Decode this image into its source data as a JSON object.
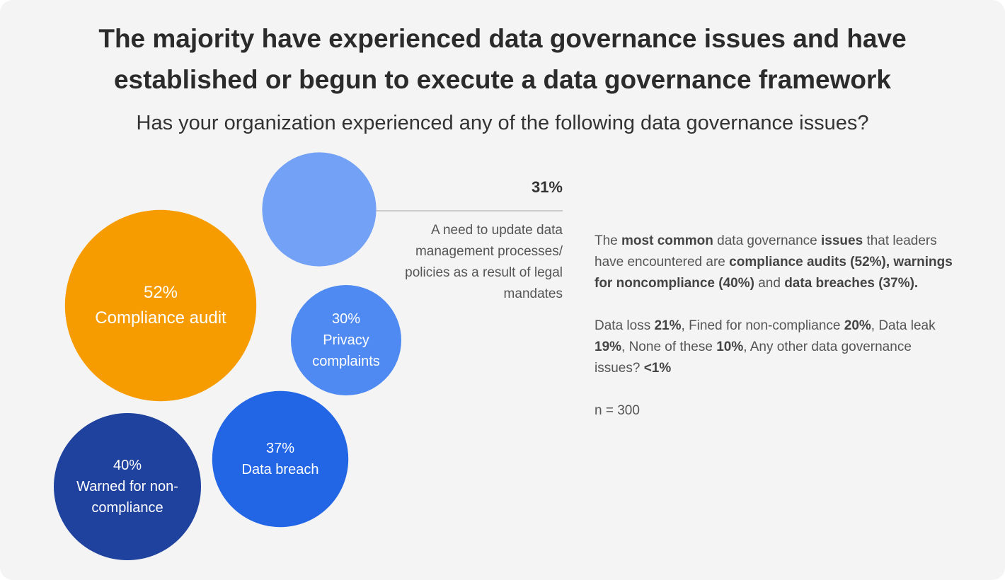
{
  "chart_data": {
    "type": "bubble",
    "title": "The majority have experienced data governance issues and have established or begun to execute a data governance framework",
    "subtitle": "Has your organization experienced any of the following data governance issues?",
    "categories": [
      "Compliance audit",
      "Warned for non-compliance",
      "Data breach",
      "A need to update data management processes/ policies as a result of legal mandates",
      "Privacy complaints"
    ],
    "values": [
      52,
      40,
      37,
      31,
      30
    ],
    "value_labels": [
      "52%",
      "40%",
      "37%",
      "31%",
      "30%"
    ],
    "colors": [
      "#f79c00",
      "#1f429f",
      "#2266e6",
      "#72a1f5",
      "#4e8af1"
    ]
  },
  "summary": {
    "paragraphs": [
      {
        "runs": [
          {
            "text": "The ",
            "bold": false
          },
          {
            "text": "most common",
            "bold": true
          },
          {
            "text": " data governance ",
            "bold": false
          },
          {
            "text": "issues",
            "bold": true
          },
          {
            "text": " that leaders have encountered are ",
            "bold": false
          },
          {
            "text": "compliance audits (52%), warnings for noncompliance (40%)",
            "bold": true
          },
          {
            "text": " and ",
            "bold": false
          },
          {
            "text": "data breaches (37%).",
            "bold": true
          }
        ]
      },
      {
        "runs": [
          {
            "text": "Data loss ",
            "bold": false
          },
          {
            "text": "21%",
            "bold": true
          },
          {
            "text": ", Fined for non-compliance ",
            "bold": false
          },
          {
            "text": "20%",
            "bold": true
          },
          {
            "text": ", Data leak ",
            "bold": false
          },
          {
            "text": "19%",
            "bold": true
          },
          {
            "text": ", None of these ",
            "bold": false
          },
          {
            "text": "10%",
            "bold": true
          },
          {
            "text": ", Any other data governance issues? ",
            "bold": false
          },
          {
            "text": "<1%",
            "bold": true
          }
        ]
      },
      {
        "runs": [
          {
            "text": "n = 300",
            "bold": false
          }
        ]
      }
    ]
  }
}
